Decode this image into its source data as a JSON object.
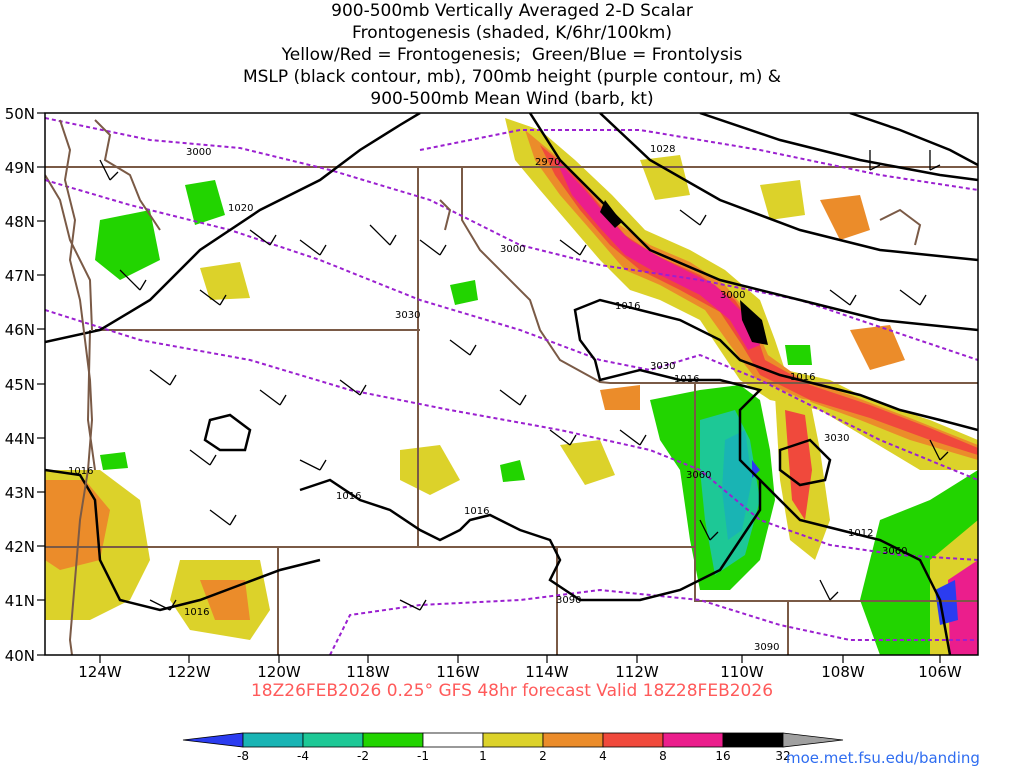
{
  "title_lines": [
    "900-500mb Vertically Averaged 2-D Scalar",
    "Frontogenesis (shaded, K/6hr/100km)",
    "Yellow/Red = Frontogenesis;  Green/Blue = Frontolysis",
    "MSLP (black contour, mb), 700mb height (purple contour, m) &",
    "900-500mb Mean Wind (barb, kt)"
  ],
  "lat_labels": [
    "50N",
    "49N",
    "48N",
    "47N",
    "46N",
    "45N",
    "44N",
    "43N",
    "42N",
    "41N",
    "40N"
  ],
  "lon_labels": [
    "124W",
    "122W",
    "120W",
    "118W",
    "116W",
    "114W",
    "112W",
    "110W",
    "108W",
    "106W"
  ],
  "isobar_labels": [
    "1028",
    "1020",
    "1016",
    "1016",
    "1016",
    "1016",
    "1016",
    "1016",
    "1016",
    "1012"
  ],
  "height_labels": [
    "3000",
    "2970",
    "3000",
    "3000",
    "3030",
    "3030",
    "3030",
    "3060",
    "3060",
    "3090",
    "3090"
  ],
  "footer": "18Z26FEB2026 0.25° GFS 48hr forecast Valid 18Z28FEB2026",
  "credit": "moe.met.fsu.edu/banding",
  "colorbar": {
    "ticks": [
      "-8",
      "-4",
      "-2",
      "-1",
      "1",
      "2",
      "4",
      "8",
      "16",
      "32"
    ],
    "colors": [
      "#2b3cf0",
      "#19b4b4",
      "#1dc896",
      "#2acd5e",
      "#22d400",
      "#ffffff",
      "#dcd22a",
      "#eb8c2a",
      "#f0493c",
      "#eb1e8c",
      "#000000",
      "#a0a0a0"
    ]
  }
}
